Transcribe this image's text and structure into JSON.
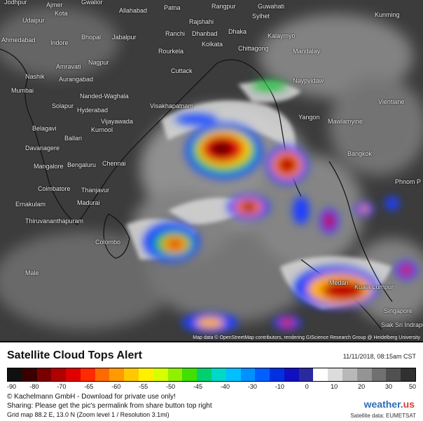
{
  "cities": [
    {
      "name": "Jodhpur"
    },
    {
      "name": "Ajmer"
    },
    {
      "name": "Gwalior"
    },
    {
      "name": "Rangpur"
    },
    {
      "name": "Guwahati"
    },
    {
      "name": "Kota"
    },
    {
      "name": "Allahabad"
    },
    {
      "name": "Patna"
    },
    {
      "name": "Sylhet"
    },
    {
      "name": "Kunming"
    },
    {
      "name": "Udaipur"
    },
    {
      "name": "Rajshahi"
    },
    {
      "name": "Ranchi"
    },
    {
      "name": "Dhanbad"
    },
    {
      "name": "Dhaka"
    },
    {
      "name": "Kalaymyo"
    },
    {
      "name": "Ahmedabad"
    },
    {
      "name": "Bhopal"
    },
    {
      "name": "Jabalpur"
    },
    {
      "name": "Indore"
    },
    {
      "name": "Kolkata"
    },
    {
      "name": "Chittagong"
    },
    {
      "name": "Mandalay"
    },
    {
      "name": "Rourkela"
    },
    {
      "name": "Amravati"
    },
    {
      "name": "Nagpur"
    },
    {
      "name": "Cuttack"
    },
    {
      "name": "Nashik"
    },
    {
      "name": "Aurangabad"
    },
    {
      "name": "Naypyidaw"
    },
    {
      "name": "Mumbai"
    },
    {
      "name": "Nanded-Waghala"
    },
    {
      "name": "Vientiane"
    },
    {
      "name": "Solapur"
    },
    {
      "name": "Hyderabad"
    },
    {
      "name": "Visakhapatnam"
    },
    {
      "name": "Yangon"
    },
    {
      "name": "Mawlamyine"
    },
    {
      "name": "Belagavi"
    },
    {
      "name": "Vijayawada"
    },
    {
      "name": "Kurnool"
    },
    {
      "name": "Ballari"
    },
    {
      "name": "Davanagere"
    },
    {
      "name": "Bangkok"
    },
    {
      "name": "Mangalore"
    },
    {
      "name": "Bengaluru"
    },
    {
      "name": "Chennai"
    },
    {
      "name": "Phnom P"
    },
    {
      "name": "Coimbatore"
    },
    {
      "name": "Thanjavur"
    },
    {
      "name": "Ernakulam"
    },
    {
      "name": "Madurai"
    },
    {
      "name": "Thiruvananthapuram"
    },
    {
      "name": "Colombo"
    },
    {
      "name": "Male"
    },
    {
      "name": "Medan"
    },
    {
      "name": "Kuala Lumpur"
    },
    {
      "name": "Singapore"
    },
    {
      "name": "Siak Sri Indrapur"
    }
  ],
  "attribution": "Map data © OpenStreetMap contributors, rendering GIScience Research Group @ Heidelberg University",
  "legend": {
    "title": "Satellite Cloud Tops Alert",
    "timestamp": "11/11/2018, 08:15am CST",
    "ticks": [
      "-90",
      "-80",
      "-70",
      "-65",
      "-60",
      "-55",
      "-50",
      "-45",
      "-40",
      "-30",
      "-10",
      "0",
      "10",
      "20",
      "30",
      "50"
    ],
    "colors": [
      "#101010",
      "#3a0000",
      "#7a0000",
      "#b00000",
      "#e00000",
      "#ff2a00",
      "#ff6a00",
      "#ff9a00",
      "#ffc800",
      "#fff000",
      "#d8ff00",
      "#90f000",
      "#40e000",
      "#00d070",
      "#00d8c8",
      "#00c0ff",
      "#0090ff",
      "#0060ff",
      "#0030e0",
      "#1010c0",
      "#2a2aa0",
      "#ffffff",
      "#dcdcdc",
      "#b8b8b8",
      "#949494",
      "#707070",
      "#505050",
      "#303030"
    ],
    "line1": "© Kachelmann GmbH - Download for private use only!",
    "line2": "Sharing: Please get the pic's permalink from share button top right",
    "line3": "Grid map 88.2 E, 13.0 N (Zoom level 1 / Resolution 3.1mi)",
    "brand_main": "weather.",
    "brand_suffix": "us",
    "source": "Satellite data: EUMETSAT"
  }
}
